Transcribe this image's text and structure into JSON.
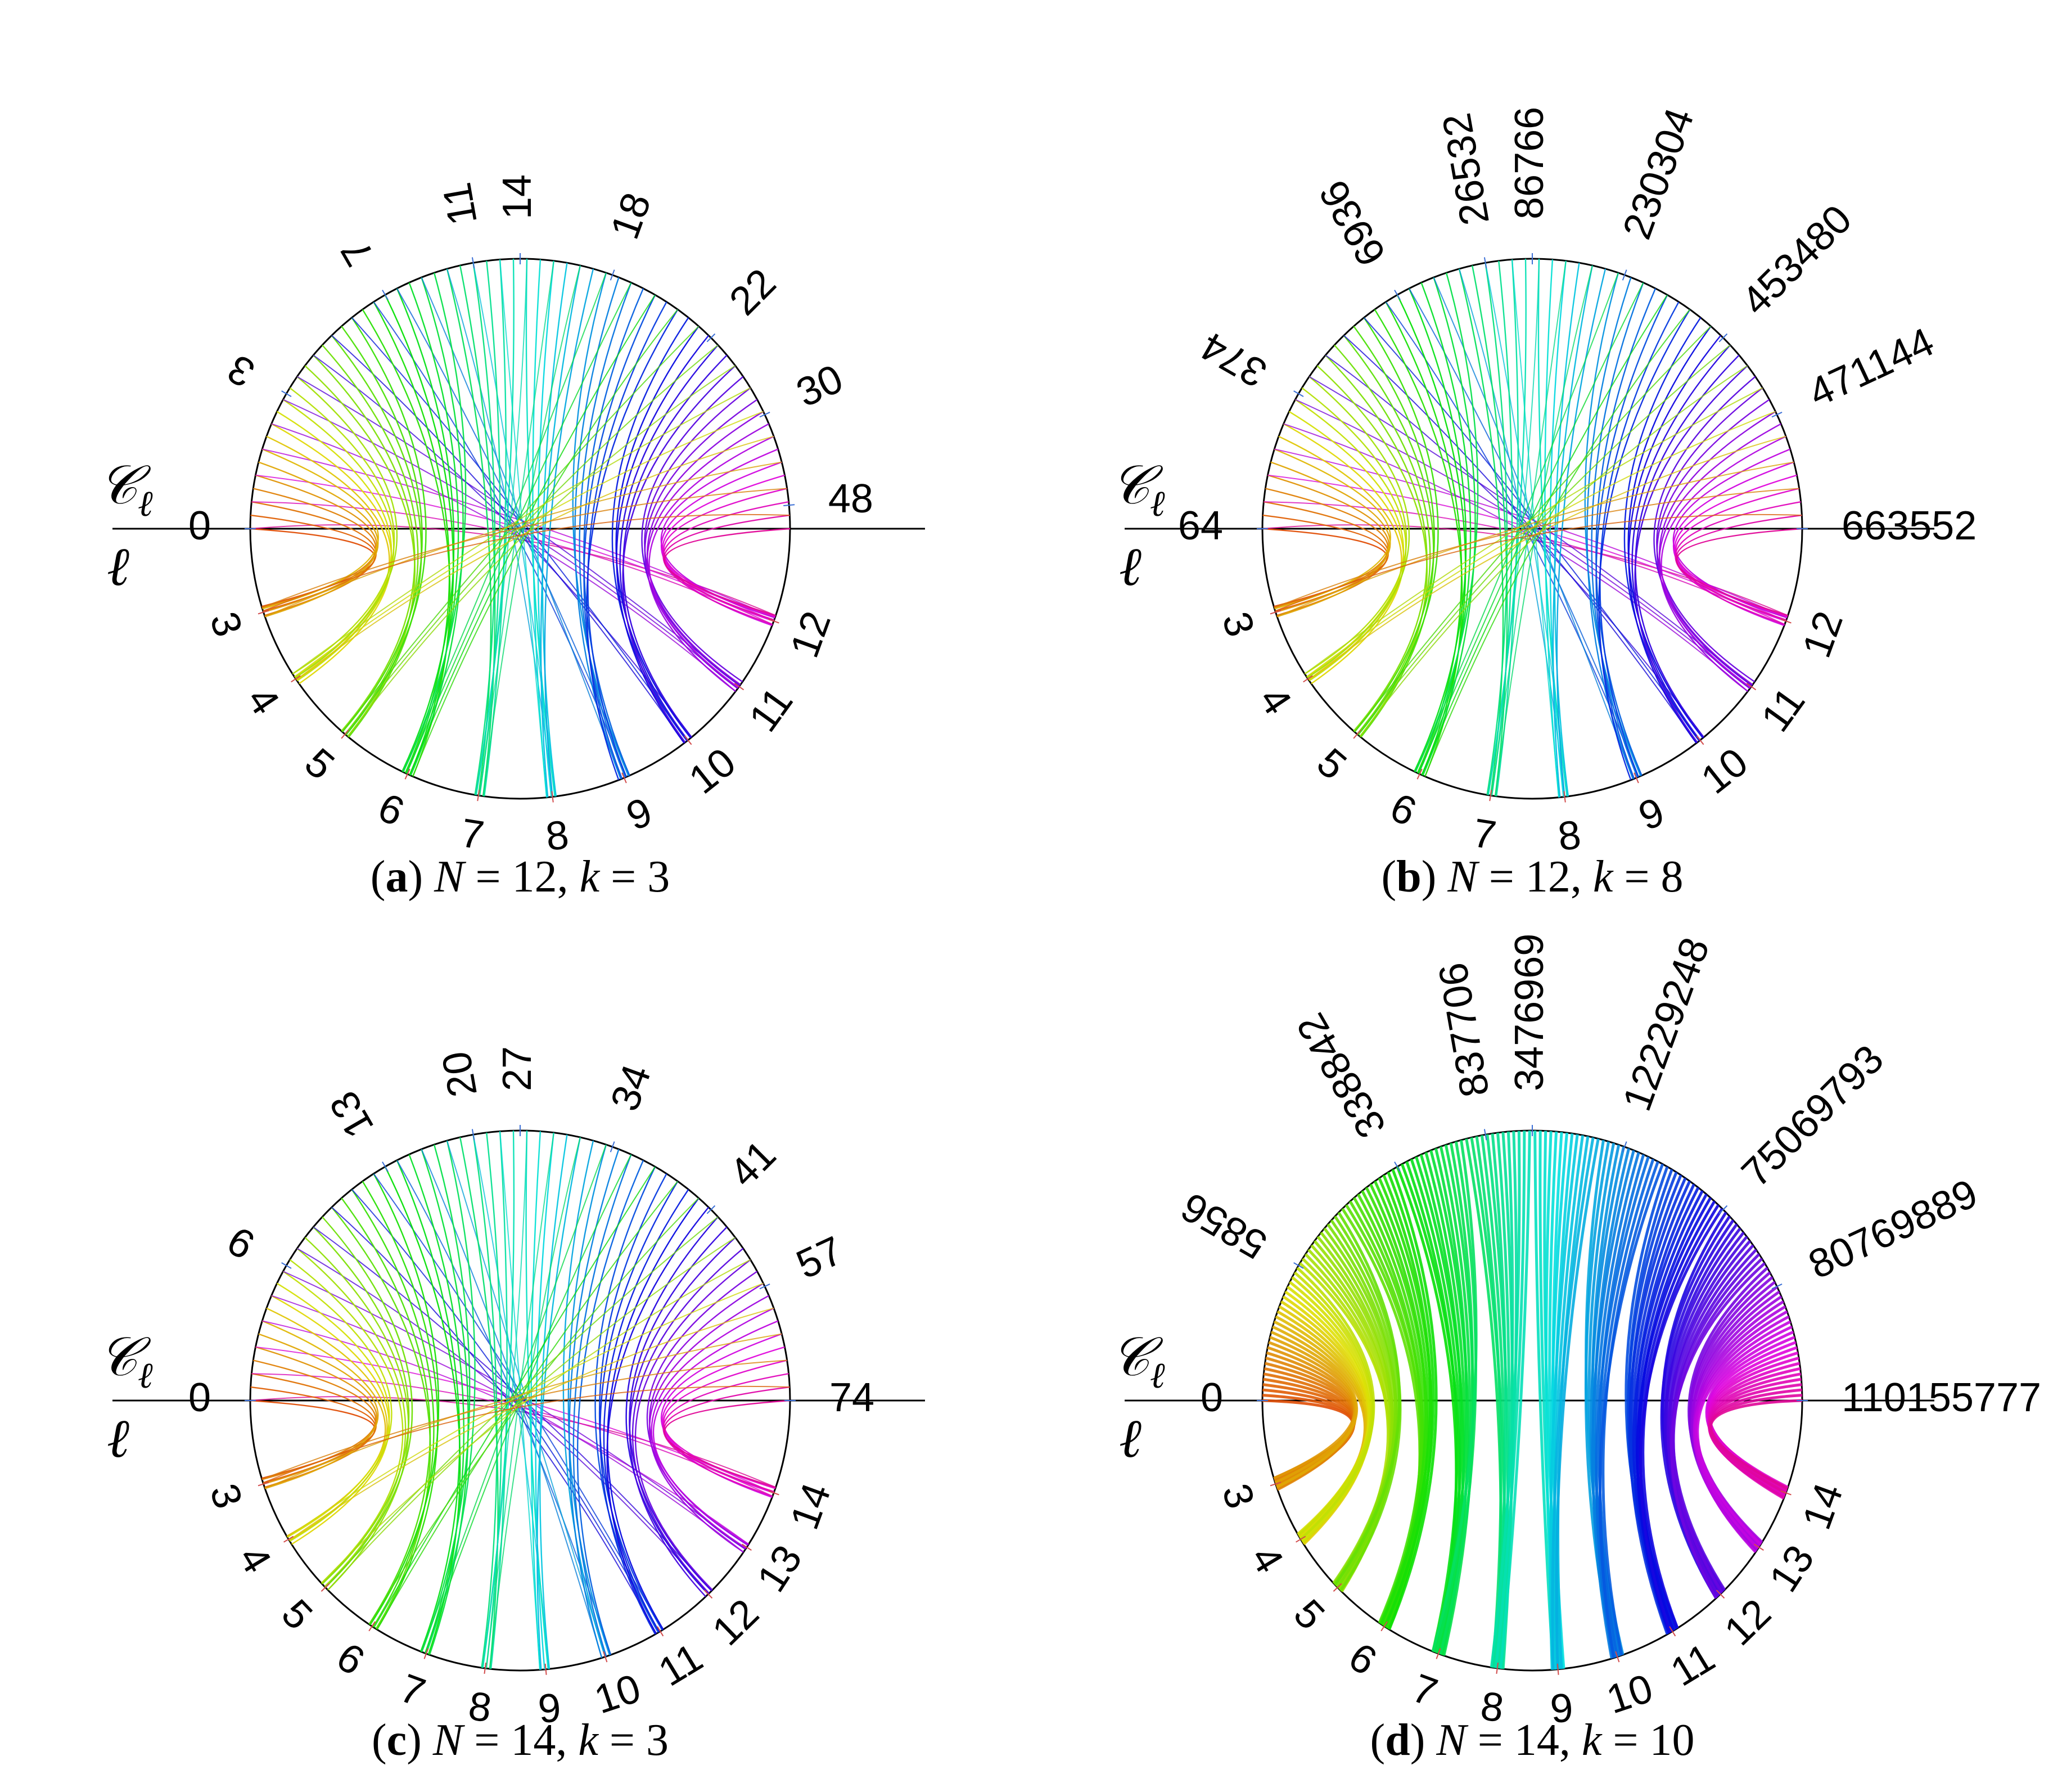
{
  "panels": [
    {
      "id": "a",
      "top_labels": [
        "0",
        "3",
        "7",
        "11",
        "14",
        "18",
        "22",
        "30",
        "48"
      ],
      "bottom_labels": [
        "3",
        "4",
        "5",
        "6",
        "7",
        "8",
        "9",
        "10",
        "11",
        "12"
      ],
      "c_label": "𝒞",
      "c_sub": "ℓ",
      "l_label": "ℓ",
      "caption": {
        "letter": "a",
        "n_value": "12",
        "k_value": "3"
      },
      "fill": false
    },
    {
      "id": "b",
      "top_labels": [
        "64",
        "374",
        "6936",
        "26532",
        "86766",
        "230304",
        "453480",
        "471144",
        "663552"
      ],
      "bottom_labels": [
        "3",
        "4",
        "5",
        "6",
        "7",
        "8",
        "9",
        "10",
        "11",
        "12"
      ],
      "c_label": "𝒞",
      "c_sub": "ℓ",
      "l_label": "ℓ",
      "caption": {
        "letter": "b",
        "n_value": "12",
        "k_value": "8"
      },
      "fill": false
    },
    {
      "id": "c",
      "top_labels": [
        "0",
        "9",
        "13",
        "20",
        "27",
        "34",
        "41",
        "57",
        "74"
      ],
      "bottom_labels": [
        "3",
        "4",
        "5",
        "6",
        "7",
        "8",
        "9",
        "10",
        "11",
        "12",
        "13",
        "14"
      ],
      "c_label": "𝒞",
      "c_sub": "ℓ",
      "l_label": "ℓ",
      "caption": {
        "letter": "c",
        "n_value": "14",
        "k_value": "3"
      },
      "fill": false
    },
    {
      "id": "d",
      "top_labels": [
        "0",
        "5856",
        "338842",
        "837706",
        "3476969",
        "12229248",
        "75069793",
        "80769889",
        "110155777"
      ],
      "bottom_labels": [
        "3",
        "4",
        "5",
        "6",
        "7",
        "8",
        "9",
        "10",
        "11",
        "12",
        "13",
        "14"
      ],
      "c_label": "𝒞",
      "c_sub": "ℓ",
      "l_label": "ℓ",
      "caption": {
        "letter": "d",
        "n_value": "14",
        "k_value": "10"
      },
      "fill": true
    }
  ],
  "caption_tokens": {
    "open": "(",
    "close": ")",
    "n": "N",
    "k": "k",
    "eq": " = ",
    "comma": ", "
  }
}
